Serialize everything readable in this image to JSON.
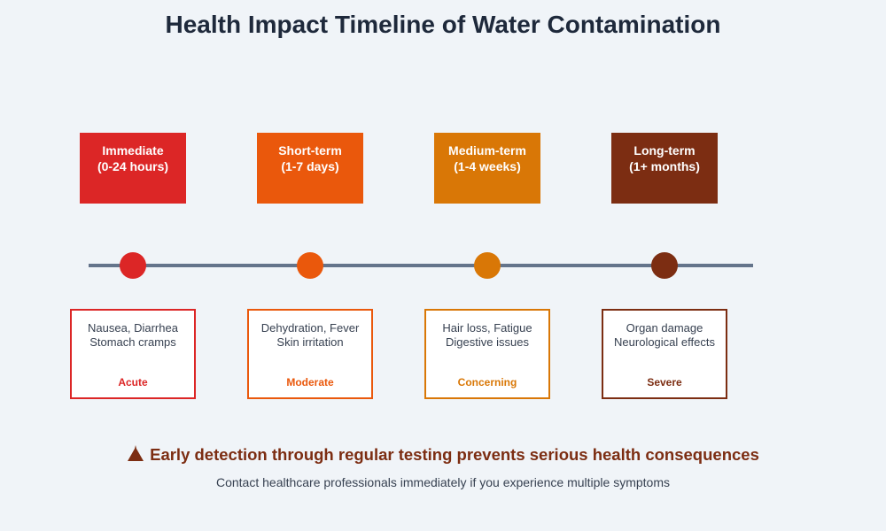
{
  "title": "Health Impact Timeline of Water Contamination",
  "phases": [
    {
      "name": "Immediate",
      "period": "(0-24 hours)",
      "symptoms": [
        "Nausea, Diarrhea",
        "Stomach cramps"
      ],
      "severity": "Acute",
      "color": "#dc2626"
    },
    {
      "name": "Short-term",
      "period": "(1-7 days)",
      "symptoms": [
        "Dehydration, Fever",
        "Skin irritation"
      ],
      "severity": "Moderate",
      "color": "#ea580c"
    },
    {
      "name": "Medium-term",
      "period": "(1-4 weeks)",
      "symptoms": [
        "Hair loss, Fatigue",
        "Digestive issues"
      ],
      "severity": "Concerning",
      "color": "#d97706"
    },
    {
      "name": "Long-term",
      "period": "(1+ months)",
      "symptoms": [
        "Organ damage",
        "Neurological effects"
      ],
      "severity": "Severe",
      "color": "#7c2d12"
    }
  ],
  "footer": {
    "icon": "warning-icon",
    "warning": "Early detection through regular testing prevents serious health consequences",
    "note": "Contact healthcare professionals immediately if you experience multiple symptoms"
  }
}
